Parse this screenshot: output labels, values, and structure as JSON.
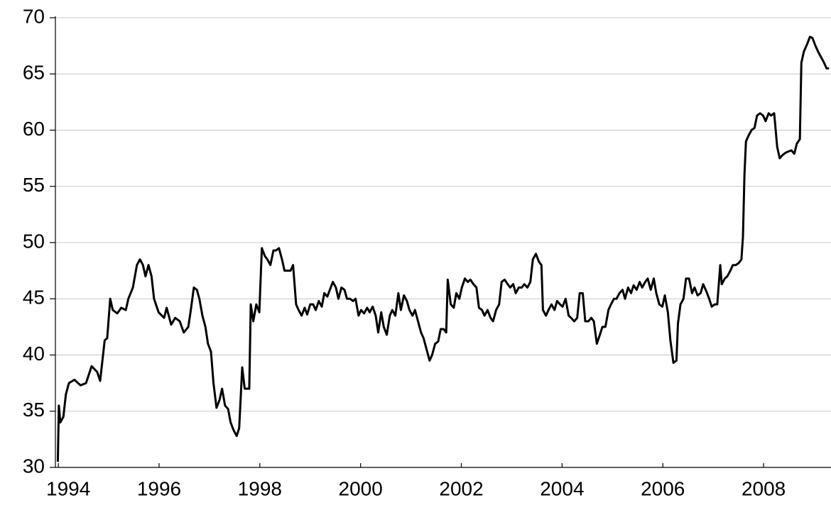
{
  "chart_data": {
    "type": "line",
    "xlim": [
      1993.97,
      2009.31
    ],
    "xticks": [
      1994,
      1996,
      1998,
      2000,
      2002,
      2004,
      2006,
      2008
    ],
    "ylim": [
      30,
      70
    ],
    "yticks": [
      30,
      35,
      40,
      45,
      50,
      55,
      60,
      65,
      70
    ],
    "grid": true,
    "series": [
      {
        "color": "#000000",
        "x": [
          1993.99,
          1994.01,
          1994.04,
          1994.1,
          1994.15,
          1994.21,
          1994.32,
          1994.44,
          1994.55,
          1994.66,
          1994.77,
          1994.83,
          1994.92,
          1994.97,
          1995.03,
          1995.08,
          1995.17,
          1995.25,
          1995.34,
          1995.39,
          1995.48,
          1995.56,
          1995.62,
          1995.68,
          1995.73,
          1995.79,
          1995.85,
          1995.9,
          1995.99,
          1996.1,
          1996.15,
          1996.24,
          1996.32,
          1996.41,
          1996.49,
          1996.58,
          1996.63,
          1996.69,
          1996.75,
          1996.8,
          1996.86,
          1996.92,
          1996.97,
          1997.03,
          1997.08,
          1997.14,
          1997.2,
          1997.25,
          1997.31,
          1997.37,
          1997.42,
          1997.48,
          1997.54,
          1997.59,
          1997.65,
          1997.7,
          1997.79,
          1997.82,
          1997.87,
          1997.93,
          1997.99,
          1998.04,
          1998.1,
          1998.15,
          1998.21,
          1998.27,
          1998.32,
          1998.38,
          1998.44,
          1998.49,
          1998.55,
          1998.61,
          1998.66,
          1998.72,
          1998.77,
          1998.83,
          1998.89,
          1998.94,
          1999.0,
          1999.06,
          1999.11,
          1999.17,
          1999.23,
          1999.28,
          1999.34,
          1999.39,
          1999.45,
          1999.51,
          1999.56,
          1999.62,
          1999.68,
          1999.73,
          1999.79,
          1999.85,
          1999.9,
          1999.96,
          2000.01,
          2000.07,
          2000.13,
          2000.18,
          2000.24,
          2000.3,
          2000.35,
          2000.41,
          2000.46,
          2000.52,
          2000.58,
          2000.63,
          2000.69,
          2000.75,
          2000.8,
          2000.86,
          2000.92,
          2000.97,
          2001.03,
          2001.08,
          2001.14,
          2001.2,
          2001.25,
          2001.31,
          2001.37,
          2001.42,
          2001.48,
          2001.54,
          2001.59,
          2001.65,
          2001.7,
          2001.73,
          2001.79,
          2001.85,
          2001.9,
          2001.96,
          2002.01,
          2002.07,
          2002.13,
          2002.18,
          2002.24,
          2002.3,
          2002.35,
          2002.41,
          2002.46,
          2002.52,
          2002.58,
          2002.63,
          2002.69,
          2002.75,
          2002.8,
          2002.86,
          2002.92,
          2002.97,
          2003.03,
          2003.08,
          2003.14,
          2003.2,
          2003.25,
          2003.31,
          2003.37,
          2003.42,
          2003.48,
          2003.54,
          2003.59,
          2003.62,
          2003.68,
          2003.73,
          2003.79,
          2003.85,
          2003.9,
          2003.96,
          2004.01,
          2004.07,
          2004.13,
          2004.18,
          2004.24,
          2004.3,
          2004.35,
          2004.41,
          2004.46,
          2004.52,
          2004.58,
          2004.63,
          2004.69,
          2004.75,
          2004.8,
          2004.86,
          2004.92,
          2004.97,
          2005.03,
          2005.08,
          2005.14,
          2005.2,
          2005.25,
          2005.31,
          2005.37,
          2005.42,
          2005.48,
          2005.54,
          2005.59,
          2005.65,
          2005.7,
          2005.76,
          2005.82,
          2005.87,
          2005.93,
          2005.99,
          2006.04,
          2006.1,
          2006.15,
          2006.21,
          2006.27,
          2006.3,
          2006.35,
          2006.41,
          2006.46,
          2006.52,
          2006.58,
          2006.63,
          2006.69,
          2006.75,
          2006.8,
          2006.86,
          2006.92,
          2006.97,
          2007.03,
          2007.08,
          2007.14,
          2007.17,
          2007.23,
          2007.28,
          2007.34,
          2007.39,
          2007.45,
          2007.51,
          2007.56,
          2007.59,
          2007.62,
          2007.65,
          2007.7,
          2007.76,
          2007.82,
          2007.87,
          2007.93,
          2007.99,
          2008.04,
          2008.1,
          2008.15,
          2008.21,
          2008.27,
          2008.32,
          2008.38,
          2008.44,
          2008.49,
          2008.55,
          2008.61,
          2008.66,
          2008.72,
          2008.75,
          2008.8,
          2008.86,
          2008.92,
          2008.97,
          2009.03,
          2009.08,
          2009.14,
          2009.2,
          2009.25,
          2009.3
        ],
        "values": [
          30.5,
          35.5,
          34,
          34.5,
          36.5,
          37.5,
          37.8,
          37.3,
          37.5,
          39,
          38.5,
          37.7,
          41.3,
          41.5,
          45,
          44,
          43.7,
          44.2,
          44,
          45,
          46,
          48,
          48.5,
          48,
          47,
          48,
          47,
          45,
          43.8,
          43.3,
          44.2,
          42.7,
          43.3,
          43,
          42,
          42.5,
          44,
          46,
          45.8,
          45,
          43.5,
          42.5,
          41,
          40.3,
          37.5,
          35.3,
          36,
          37,
          35.5,
          35.2,
          34,
          33.3,
          32.8,
          33.5,
          38.9,
          37,
          37,
          44.5,
          43,
          44.5,
          43.8,
          49.5,
          48.8,
          48.5,
          48,
          49.3,
          49.3,
          49.5,
          48.5,
          47.5,
          47.5,
          47.5,
          48,
          44.5,
          44,
          43.5,
          44.2,
          43.6,
          44.5,
          44.5,
          44,
          44.8,
          44.3,
          45.5,
          45.2,
          45.8,
          46.5,
          46,
          45,
          46,
          45.8,
          45,
          45,
          44.8,
          45,
          43.5,
          44,
          43.7,
          44.2,
          43.8,
          44.3,
          43.5,
          42,
          43.8,
          42.5,
          41.8,
          43.5,
          44,
          43.5,
          45.5,
          44,
          45.3,
          44.8,
          44,
          43.5,
          44,
          43,
          42,
          41.5,
          40.5,
          39.5,
          40,
          41,
          41.2,
          42.3,
          42.3,
          42,
          46.7,
          44.5,
          44.2,
          45.5,
          45,
          46,
          46.8,
          46.5,
          46.7,
          46.3,
          46,
          44.2,
          44,
          43.5,
          44,
          43.3,
          43,
          44,
          44.5,
          46.5,
          46.7,
          46.3,
          46,
          46.3,
          45.5,
          46,
          46,
          46.3,
          46,
          46.5,
          48.5,
          49,
          48.3,
          48,
          44,
          43.5,
          44,
          44.5,
          44,
          44.8,
          44.5,
          44.3,
          45,
          43.5,
          43.3,
          43,
          43.3,
          45.5,
          45.5,
          43,
          43,
          43.3,
          43,
          41,
          41.8,
          42.5,
          42.5,
          44,
          44.5,
          45,
          45,
          45.5,
          45.8,
          45,
          46,
          45.5,
          46.2,
          45.8,
          46.5,
          46,
          46.5,
          46.8,
          45.8,
          46.8,
          45.5,
          44.5,
          44.3,
          45.3,
          43.8,
          41.3,
          39.3,
          39.5,
          42.8,
          44.5,
          45,
          46.8,
          46.8,
          45.5,
          46,
          45.3,
          45.5,
          46.3,
          45.7,
          45,
          44.3,
          44.5,
          44.5,
          48,
          46.3,
          46.8,
          47,
          47.5,
          48,
          48,
          48.2,
          48.5,
          50.5,
          56,
          59,
          59.5,
          60,
          60.2,
          61.3,
          61.5,
          61.3,
          60.8,
          61.5,
          61.3,
          61.5,
          58.5,
          57.5,
          57.8,
          58,
          58.1,
          58.2,
          57.9,
          58.8,
          59.2,
          66,
          67,
          67.6,
          68.3,
          68.2,
          67.5,
          67,
          66.5,
          66,
          65.5,
          65.5
        ]
      }
    ]
  }
}
